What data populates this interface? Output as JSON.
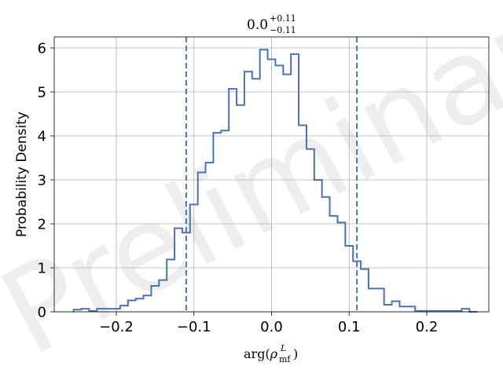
{
  "chart_data": {
    "type": "histogram",
    "title": {
      "base": "0.0",
      "sup": "+0.11",
      "sub": "−0.11"
    },
    "xlabel": {
      "fn": "arg(",
      "sym": "ρ",
      "sup": "L",
      "sub": "mf",
      "close": ")"
    },
    "ylabel": "Probability Density",
    "watermark": "Preliminary",
    "xlim": [
      -0.28,
      0.28
    ],
    "ylim": [
      0,
      6.25
    ],
    "xticks": [
      {
        "value": -0.2,
        "label": "−0.2"
      },
      {
        "value": -0.1,
        "label": "−0.1"
      },
      {
        "value": 0.0,
        "label": "0.0"
      },
      {
        "value": 0.1,
        "label": "0.1"
      },
      {
        "value": 0.2,
        "label": "0.2"
      }
    ],
    "yticks": [
      {
        "value": 0,
        "label": "0"
      },
      {
        "value": 1,
        "label": "1"
      },
      {
        "value": 2,
        "label": "2"
      },
      {
        "value": 3,
        "label": "3"
      },
      {
        "value": 4,
        "label": "4"
      },
      {
        "value": 5,
        "label": "5"
      },
      {
        "value": 6,
        "label": "6"
      }
    ],
    "grid": true,
    "line_color": "#4c72b0",
    "bin_edges": [
      -0.255,
      -0.245,
      -0.235,
      -0.225,
      -0.215,
      -0.205,
      -0.195,
      -0.185,
      -0.175,
      -0.165,
      -0.155,
      -0.145,
      -0.135,
      -0.125,
      -0.115,
      -0.105,
      -0.095,
      -0.085,
      -0.075,
      -0.065,
      -0.055,
      -0.045,
      -0.035,
      -0.025,
      -0.015,
      -0.005,
      0.005,
      0.015,
      0.025,
      0.035,
      0.045,
      0.055,
      0.065,
      0.075,
      0.085,
      0.095,
      0.105,
      0.115,
      0.125,
      0.135,
      0.145,
      0.155,
      0.165,
      0.175,
      0.185,
      0.195,
      0.205,
      0.215,
      0.225,
      0.235,
      0.245,
      0.255,
      0.265
    ],
    "density": [
      0.05,
      0.07,
      0.02,
      0.07,
      0.07,
      0.07,
      0.14,
      0.26,
      0.3,
      0.37,
      0.59,
      0.72,
      1.19,
      1.9,
      1.8,
      2.44,
      3.17,
      3.39,
      4.07,
      4.12,
      5.07,
      4.7,
      5.46,
      5.3,
      5.96,
      5.74,
      5.6,
      5.4,
      5.86,
      4.24,
      3.7,
      3.0,
      2.61,
      2.18,
      2.03,
      1.5,
      1.15,
      0.97,
      0.53,
      0.53,
      0.16,
      0.24,
      0.12,
      0.12,
      0.02,
      0.02,
      0.02,
      0.02,
      0.02,
      0.02,
      0.07,
      0.0
    ],
    "credible_interval": {
      "lower": -0.11,
      "upper": 0.11,
      "style": "dashed"
    }
  }
}
